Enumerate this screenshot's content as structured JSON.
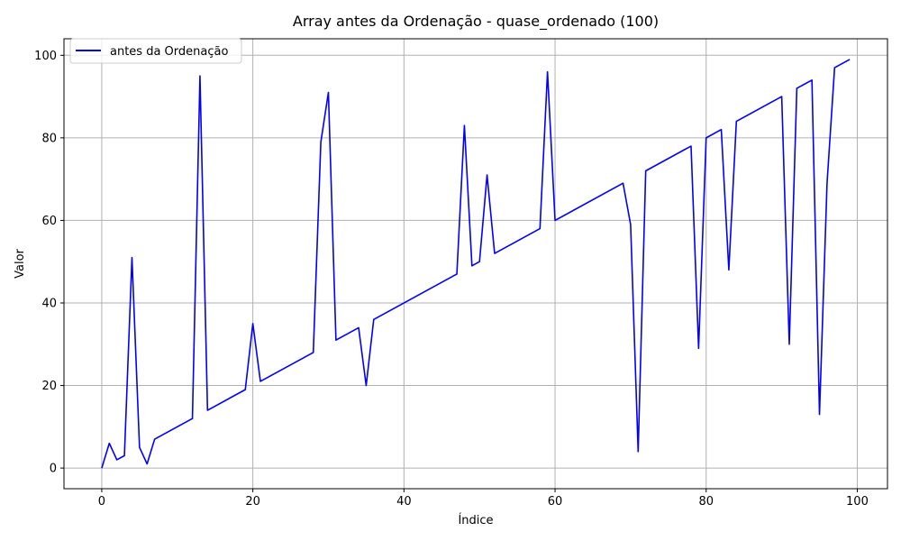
{
  "chart_data": {
    "type": "line",
    "title": "Array antes da Ordenação - quase_ordenado (100)",
    "xlabel": "Índice",
    "ylabel": "Valor",
    "xlim": [
      -5,
      104
    ],
    "ylim": [
      -5,
      104
    ],
    "xticks": [
      0,
      20,
      40,
      60,
      80,
      100
    ],
    "yticks": [
      0,
      20,
      40,
      60,
      80,
      100
    ],
    "grid": true,
    "legend_position": "upper-left",
    "series": [
      {
        "name": "antes da Ordenação",
        "color": "#0000ff",
        "x": [
          0,
          1,
          2,
          3,
          4,
          5,
          6,
          7,
          12,
          13,
          14,
          19,
          20,
          21,
          28,
          29,
          30,
          31,
          34,
          35,
          36,
          47,
          48,
          49,
          50,
          51,
          52,
          58,
          59,
          60,
          69,
          70,
          71,
          72,
          78,
          79,
          80,
          82,
          83,
          84,
          90,
          91,
          92,
          94,
          95,
          96,
          97,
          99
        ],
        "values": [
          0,
          6,
          2,
          3,
          51,
          5,
          1,
          7,
          12,
          95,
          14,
          19,
          35,
          21,
          28,
          79,
          91,
          31,
          34,
          20,
          36,
          47,
          83,
          49,
          50,
          71,
          52,
          58,
          96,
          60,
          69,
          59,
          4,
          72,
          78,
          29,
          80,
          82,
          48,
          84,
          90,
          30,
          92,
          94,
          13,
          69,
          97,
          99
        ]
      }
    ]
  }
}
